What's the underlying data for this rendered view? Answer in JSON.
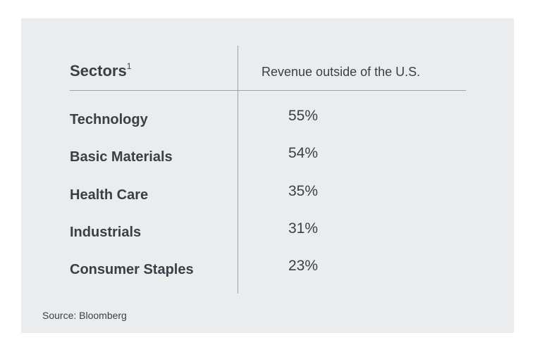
{
  "chart_data": {
    "type": "table",
    "columns": [
      "Sectors",
      "Revenue outside of the U.S."
    ],
    "header_footnote": "1",
    "rows": [
      {
        "sector": "Technology",
        "value": "55%"
      },
      {
        "sector": "Basic Materials",
        "value": "54%"
      },
      {
        "sector": "Health Care",
        "value": "35%"
      },
      {
        "sector": "Industrials",
        "value": "31%"
      },
      {
        "sector": "Consumer Staples",
        "value": "23%"
      }
    ],
    "source": "Source: Bloomberg"
  }
}
